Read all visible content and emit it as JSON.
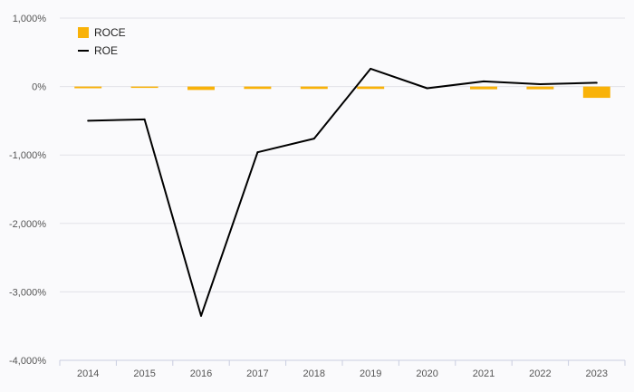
{
  "chart_data": {
    "type": "bar",
    "categories": [
      "2014",
      "2015",
      "2016",
      "2017",
      "2018",
      "2019",
      "2020",
      "2021",
      "2022",
      "2023"
    ],
    "series": [
      {
        "name": "ROCE",
        "type": "bar",
        "color": "#f9b208",
        "values": [
          -25,
          -10,
          -50,
          -35,
          -35,
          -35,
          0,
          -40,
          -40,
          -165
        ]
      },
      {
        "name": "ROE",
        "type": "line",
        "color": "#000000",
        "values": [
          -500,
          -480,
          -3350,
          -960,
          -760,
          260,
          -25,
          75,
          35,
          55
        ]
      }
    ],
    "ylim": [
      -4000,
      1000
    ],
    "yticks": [
      1000,
      0,
      -1000,
      -2000,
      -3000,
      -4000
    ],
    "ytick_labels": [
      "1,000%",
      "0%",
      "-1,000%",
      "-2,000%",
      "-3,000%",
      "-4,000%"
    ],
    "grid": true,
    "legend_position": "top-left",
    "title": "",
    "xlabel": "",
    "ylabel": ""
  }
}
